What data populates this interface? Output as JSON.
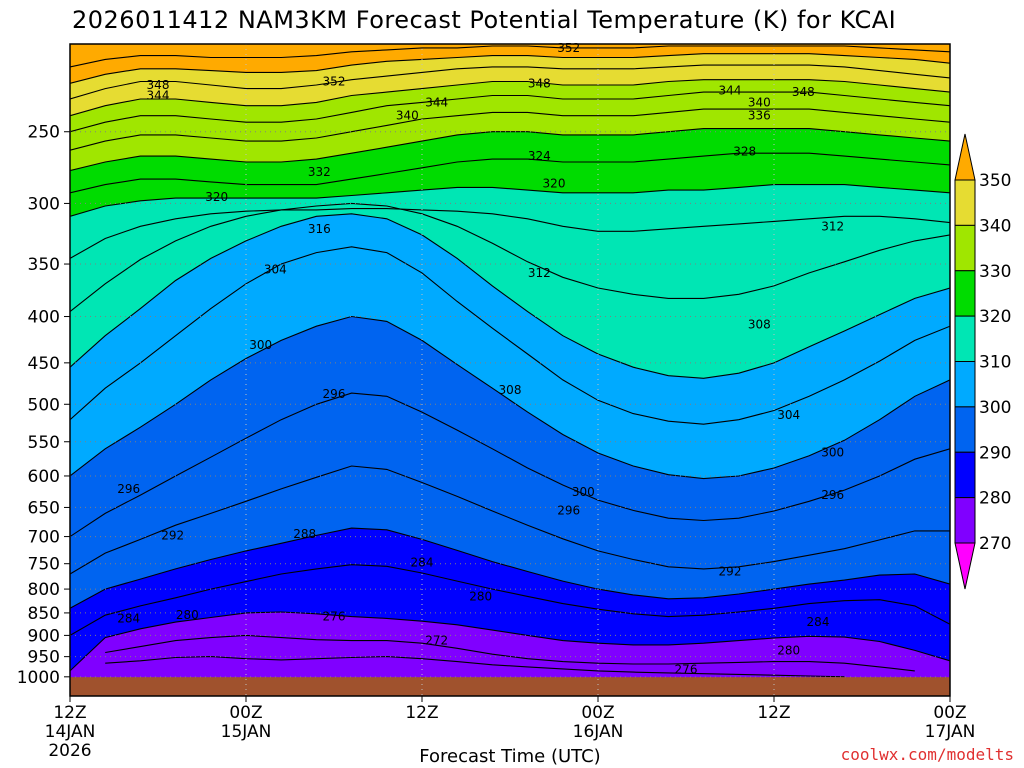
{
  "chart_data": {
    "type": "contour",
    "title": "2026011412 NAM3KM Forecast Potential Temperature (K) for KCAI",
    "xlabel": "Forecast Time (UTC)",
    "ylabel": "",
    "credit": "coolwx.com/modelts",
    "x_range_hours": [
      0,
      60
    ],
    "x_ticks": [
      {
        "hour": 0,
        "lines": [
          "12Z",
          "14JAN",
          "2026"
        ]
      },
      {
        "hour": 12,
        "lines": [
          "00Z",
          "15JAN"
        ]
      },
      {
        "hour": 24,
        "lines": [
          "12Z"
        ]
      },
      {
        "hour": 36,
        "lines": [
          "00Z",
          "16JAN"
        ]
      },
      {
        "hour": 48,
        "lines": [
          "12Z"
        ]
      },
      {
        "hour": 60,
        "lines": [
          "00Z",
          "17JAN"
        ]
      }
    ],
    "y_scale": "log-pressure",
    "y_range_hpa": [
      1050,
      200
    ],
    "y_ticks": [
      250,
      300,
      350,
      400,
      450,
      500,
      550,
      600,
      650,
      700,
      750,
      800,
      850,
      900,
      950,
      1000
    ],
    "surface_hpa": 1006,
    "colorbar": {
      "levels": [
        270,
        280,
        290,
        300,
        310,
        320,
        330,
        340,
        350
      ],
      "colors": [
        "#ff00ff",
        "#c800ff",
        "#8000ff",
        "#0000ff",
        "#0064f0",
        "#00aaff",
        "#00e6b4",
        "#00dc00",
        "#a0e600",
        "#e6dc32",
        "#ffaa00"
      ]
    },
    "isentropes": [
      {
        "theta": 272,
        "pressure": [
          null,
          966,
          960,
          952,
          950,
          955,
          958,
          955,
          952,
          950,
          955,
          962,
          970,
          975,
          980,
          985,
          988,
          990,
          992,
          994,
          996,
          998,
          1000,
          null,
          null,
          null
        ]
      },
      {
        "theta": 276,
        "pressure": [
          null,
          940,
          926,
          912,
          905,
          900,
          905,
          910,
          912,
          912,
          918,
          930,
          944,
          955,
          962,
          966,
          968,
          968,
          966,
          964,
          962,
          962,
          966,
          975,
          985,
          null
        ]
      },
      {
        "theta": 280,
        "pressure": [
          985,
          905,
          885,
          870,
          860,
          850,
          848,
          852,
          858,
          862,
          868,
          876,
          888,
          900,
          912,
          918,
          922,
          922,
          918,
          912,
          906,
          902,
          904,
          914,
          935,
          960
        ]
      },
      {
        "theta": 284,
        "pressure": [
          900,
          855,
          835,
          818,
          800,
          785,
          770,
          760,
          752,
          755,
          768,
          784,
          800,
          815,
          830,
          842,
          852,
          858,
          855,
          848,
          840,
          830,
          824,
          822,
          835,
          875
        ]
      },
      {
        "theta": 288,
        "pressure": [
          840,
          800,
          780,
          760,
          742,
          726,
          712,
          698,
          685,
          688,
          705,
          725,
          746,
          765,
          784,
          800,
          812,
          820,
          818,
          810,
          800,
          790,
          782,
          772,
          770,
          790
        ]
      },
      {
        "theta": 292,
        "pressure": [
          770,
          730,
          705,
          680,
          660,
          640,
          620,
          602,
          585,
          590,
          610,
          632,
          656,
          680,
          704,
          726,
          742,
          756,
          760,
          756,
          746,
          734,
          722,
          706,
          690,
          690
        ]
      },
      {
        "theta": 296,
        "pressure": [
          700,
          660,
          630,
          600,
          572,
          545,
          520,
          500,
          486,
          490,
          510,
          534,
          560,
          588,
          614,
          638,
          655,
          668,
          672,
          668,
          656,
          640,
          622,
          600,
          575,
          560
        ]
      },
      {
        "theta": 300,
        "pressure": [
          600,
          560,
          530,
          500,
          470,
          445,
          425,
          410,
          400,
          405,
          425,
          452,
          480,
          510,
          540,
          566,
          585,
          598,
          604,
          600,
          588,
          570,
          548,
          520,
          490,
          470
        ]
      },
      {
        "theta": 304,
        "pressure": [
          520,
          480,
          450,
          420,
          392,
          368,
          350,
          340,
          335,
          340,
          358,
          385,
          412,
          440,
          470,
          495,
          512,
          522,
          526,
          520,
          508,
          490,
          470,
          448,
          425,
          410
        ]
      },
      {
        "theta": 308,
        "pressure": [
          455,
          420,
          392,
          365,
          345,
          330,
          318,
          310,
          308,
          312,
          325,
          345,
          370,
          395,
          420,
          440,
          455,
          465,
          468,
          462,
          450,
          432,
          415,
          398,
          382,
          372
        ]
      },
      {
        "theta": 312,
        "pressure": [
          395,
          368,
          346,
          330,
          318,
          310,
          305,
          302,
          300,
          302,
          308,
          318,
          332,
          348,
          362,
          372,
          378,
          382,
          382,
          378,
          370,
          358,
          348,
          338,
          330,
          325
        ]
      },
      {
        "theta": 316,
        "pressure": [
          345,
          328,
          318,
          312,
          308,
          306,
          305,
          305,
          304,
          304,
          305,
          306,
          308,
          312,
          318,
          322,
          322,
          320,
          318,
          316,
          314,
          312,
          310,
          310,
          312,
          315
        ]
      },
      {
        "theta": 320,
        "pressure": [
          310,
          302,
          298,
          296,
          296,
          296,
          296,
          296,
          294,
          292,
          290,
          288,
          288,
          290,
          292,
          292,
          292,
          290,
          290,
          288,
          286,
          286,
          286,
          288,
          290,
          292
        ]
      },
      {
        "theta": 324,
        "pressure": [
          292,
          286,
          282,
          282,
          284,
          286,
          286,
          286,
          282,
          278,
          274,
          270,
          268,
          268,
          270,
          270,
          270,
          268,
          266,
          264,
          264,
          264,
          266,
          268,
          270,
          272
        ]
      },
      {
        "theta": 328,
        "pressure": [
          276,
          270,
          266,
          266,
          268,
          270,
          270,
          268,
          264,
          260,
          256,
          252,
          250,
          250,
          252,
          252,
          252,
          250,
          248,
          248,
          248,
          248,
          250,
          252,
          254,
          256
        ]
      },
      {
        "theta": 332,
        "pressure": [
          262,
          256,
          252,
          252,
          254,
          256,
          256,
          254,
          250,
          246,
          242,
          240,
          238,
          238,
          240,
          240,
          240,
          238,
          236,
          236,
          236,
          236,
          238,
          240,
          242,
          244
        ]
      },
      {
        "theta": 336,
        "pressure": [
          250,
          244,
          240,
          240,
          242,
          244,
          244,
          242,
          238,
          234,
          232,
          230,
          228,
          228,
          230,
          230,
          230,
          228,
          226,
          226,
          226,
          226,
          228,
          230,
          232,
          234
        ]
      },
      {
        "theta": 340,
        "pressure": [
          240,
          234,
          230,
          230,
          232,
          234,
          234,
          232,
          228,
          226,
          224,
          222,
          220,
          220,
          222,
          222,
          222,
          220,
          219,
          219,
          219,
          219,
          220,
          222,
          224,
          226
        ]
      },
      {
        "theta": 344,
        "pressure": [
          230,
          224,
          220,
          220,
          222,
          224,
          224,
          222,
          219,
          217,
          215,
          213,
          212,
          212,
          213,
          213,
          213,
          212,
          211,
          211,
          211,
          211,
          212,
          214,
          216,
          218
        ]
      },
      {
        "theta": 348,
        "pressure": [
          221,
          216,
          213,
          213,
          214,
          215,
          215,
          214,
          211,
          209,
          208,
          207,
          206,
          206,
          207,
          207,
          207,
          206,
          205,
          205,
          205,
          205,
          206,
          207,
          208,
          210
        ]
      },
      {
        "theta": 352,
        "pressure": [
          212,
          208,
          206,
          206,
          207,
          207,
          207,
          206,
          204,
          203,
          202,
          202,
          201,
          201,
          202,
          202,
          202,
          201,
          201,
          201,
          201,
          201,
          201,
          202,
          203,
          204
        ]
      }
    ],
    "contour_labels": [
      {
        "text": "348",
        "hour": 6,
        "hpa": 222
      },
      {
        "text": "344",
        "hour": 6,
        "hpa": 228
      },
      {
        "text": "352",
        "hour": 18,
        "hpa": 220
      },
      {
        "text": "344",
        "hour": 25,
        "hpa": 232
      },
      {
        "text": "340",
        "hour": 23,
        "hpa": 240
      },
      {
        "text": "352",
        "hour": 34,
        "hpa": 202
      },
      {
        "text": "348",
        "hour": 32,
        "hpa": 221
      },
      {
        "text": "344",
        "hour": 45,
        "hpa": 225
      },
      {
        "text": "348",
        "hour": 50,
        "hpa": 226
      },
      {
        "text": "340",
        "hour": 47,
        "hpa": 232
      },
      {
        "text": "336",
        "hour": 47,
        "hpa": 240
      },
      {
        "text": "328",
        "hour": 46,
        "hpa": 263
      },
      {
        "text": "324",
        "hour": 32,
        "hpa": 266
      },
      {
        "text": "332",
        "hour": 17,
        "hpa": 277
      },
      {
        "text": "320",
        "hour": 33,
        "hpa": 285
      },
      {
        "text": "320",
        "hour": 10,
        "hpa": 295
      },
      {
        "text": "316",
        "hour": 17,
        "hpa": 320
      },
      {
        "text": "312",
        "hour": 52,
        "hpa": 318
      },
      {
        "text": "312",
        "hour": 32,
        "hpa": 358
      },
      {
        "text": "304",
        "hour": 14,
        "hpa": 355
      },
      {
        "text": "308",
        "hour": 47,
        "hpa": 408
      },
      {
        "text": "308",
        "hour": 30,
        "hpa": 482
      },
      {
        "text": "300",
        "hour": 13,
        "hpa": 430
      },
      {
        "text": "296",
        "hour": 18,
        "hpa": 487
      },
      {
        "text": "304",
        "hour": 49,
        "hpa": 514
      },
      {
        "text": "300",
        "hour": 52,
        "hpa": 565
      },
      {
        "text": "296",
        "hour": 4,
        "hpa": 620
      },
      {
        "text": "300",
        "hour": 35,
        "hpa": 625
      },
      {
        "text": "296",
        "hour": 34,
        "hpa": 655
      },
      {
        "text": "296",
        "hour": 52,
        "hpa": 630
      },
      {
        "text": "292",
        "hour": 7,
        "hpa": 698
      },
      {
        "text": "288",
        "hour": 16,
        "hpa": 695
      },
      {
        "text": "284",
        "hour": 24,
        "hpa": 748
      },
      {
        "text": "292",
        "hour": 45,
        "hpa": 765
      },
      {
        "text": "280",
        "hour": 28,
        "hpa": 815
      },
      {
        "text": "284",
        "hour": 4,
        "hpa": 862
      },
      {
        "text": "280",
        "hour": 8,
        "hpa": 855
      },
      {
        "text": "276",
        "hour": 18,
        "hpa": 858
      },
      {
        "text": "284",
        "hour": 51,
        "hpa": 870
      },
      {
        "text": "272",
        "hour": 25,
        "hpa": 912
      },
      {
        "text": "280",
        "hour": 49,
        "hpa": 935
      },
      {
        "text": "276",
        "hour": 42,
        "hpa": 982
      }
    ]
  }
}
